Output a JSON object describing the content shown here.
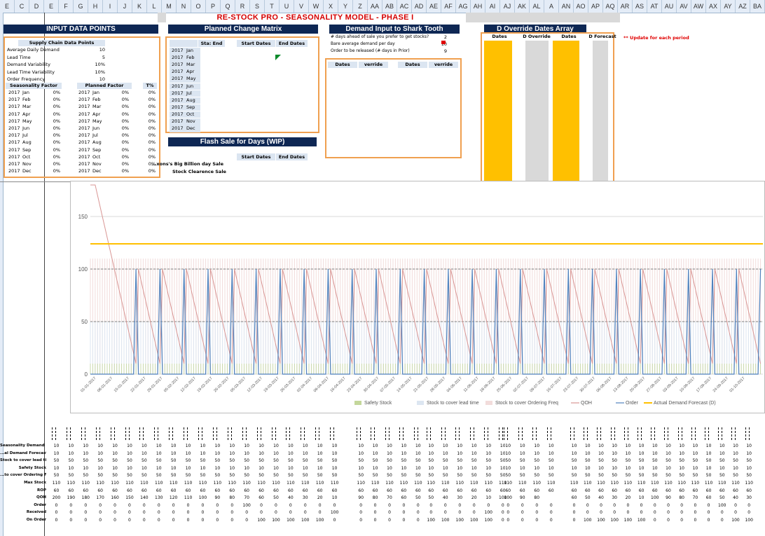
{
  "title": "RE-STOCK PRO - SEASONALITY MODEL - PHASE I",
  "columns": [
    "E",
    "C",
    "D",
    "E",
    "F",
    "G",
    "H",
    "I",
    "J",
    "K",
    "L",
    "M",
    "N",
    "O",
    "P",
    "Q",
    "R",
    "S",
    "T",
    "U",
    "V",
    "W",
    "X",
    "Y",
    "Z",
    "AA",
    "AB",
    "AC",
    "AD",
    "AE",
    "AF",
    "AG",
    "AH",
    "AI",
    "AJ",
    "AK",
    "AL",
    "A",
    "AN",
    "AO",
    "AP",
    "AQ",
    "AR",
    "AS",
    "AT",
    "AU",
    "AV",
    "AW",
    "AX",
    "AY",
    "AZ",
    "BA"
  ],
  "input": {
    "header": "INPUT DATA POINTS",
    "supply_header": "Supply Chain Data Points",
    "params": [
      {
        "label": "Average Daily Demand",
        "value": "10"
      },
      {
        "label": "Lead Time",
        "value": "5"
      },
      {
        "label": "Demand Variability",
        "value": "10%"
      },
      {
        "label": "Lead Time Variability",
        "value": "10%"
      },
      {
        "label": "Order Frequency",
        "value": "10"
      }
    ],
    "seasonality_header": "Seasonality Factor",
    "planned_header": "Planned Factor",
    "tpct_header": "T%",
    "months": [
      {
        "y": "2017",
        "m": "Jan",
        "s": "0%",
        "py": "2017",
        "pm": "Jan",
        "p": "0%",
        "t": "0%"
      },
      {
        "y": "2017",
        "m": "Feb",
        "s": "0%",
        "py": "2017",
        "pm": "Feb",
        "p": "0%",
        "t": "0%"
      },
      {
        "y": "2017",
        "m": "Mar",
        "s": "0%",
        "py": "2017",
        "pm": "Mar",
        "p": "0%",
        "t": "0%"
      },
      {
        "y": "2017",
        "m": "Apr",
        "s": "0%",
        "py": "2017",
        "pm": "Apr",
        "p": "0%",
        "t": "0%"
      },
      {
        "y": "2017",
        "m": "May",
        "s": "0%",
        "py": "2017",
        "pm": "May",
        "p": "0%",
        "t": "0%"
      },
      {
        "y": "2017",
        "m": "Jun",
        "s": "0%",
        "py": "2017",
        "pm": "Jun",
        "p": "0%",
        "t": "0%"
      },
      {
        "y": "2017",
        "m": "Jul",
        "s": "0%",
        "py": "2017",
        "pm": "Jul",
        "p": "0%",
        "t": "0%"
      },
      {
        "y": "2017",
        "m": "Aug",
        "s": "0%",
        "py": "2017",
        "pm": "Aug",
        "p": "0%",
        "t": "0%"
      },
      {
        "y": "2017",
        "m": "Sep",
        "s": "0%",
        "py": "2017",
        "pm": "Sep",
        "p": "0%",
        "t": "0%"
      },
      {
        "y": "2017",
        "m": "Oct",
        "s": "0%",
        "py": "2017",
        "pm": "Oct",
        "p": "0%",
        "t": "0%"
      },
      {
        "y": "2017",
        "m": "Nov",
        "s": "0%",
        "py": "2017",
        "pm": "Nov",
        "p": "0%",
        "t": "0%"
      },
      {
        "y": "2017",
        "m": "Dec",
        "s": "0%",
        "py": "2017",
        "pm": "Dec",
        "p": "0%",
        "t": "0%"
      }
    ]
  },
  "planned": {
    "header": "Planned Change Matrix",
    "col_change": "Sta: End",
    "col_start": "Start Dates",
    "col_end": "End Dates",
    "rows": [
      {
        "y": "2017",
        "m": "Jan"
      },
      {
        "y": "2017",
        "m": "Feb"
      },
      {
        "y": "2017",
        "m": "Mar"
      },
      {
        "y": "2017",
        "m": "Apr"
      },
      {
        "y": "2017",
        "m": "May"
      },
      {
        "y": "2017",
        "m": "Jun"
      },
      {
        "y": "2017",
        "m": "Jul"
      },
      {
        "y": "2017",
        "m": "Aug"
      },
      {
        "y": "2017",
        "m": "Sep"
      },
      {
        "y": "2017",
        "m": "Oct"
      },
      {
        "y": "2017",
        "m": "Nov"
      },
      {
        "y": "2017",
        "m": "Dec"
      }
    ]
  },
  "flash": {
    "header": "Flash Sale for Days (WIP)",
    "col_start": "Start Dates",
    "col_end": "End Dates",
    "sales": [
      "...xons's Big Billion day Sale",
      "Stock Clearence Sale"
    ]
  },
  "shark": {
    "header": "Demand Input to Shark Tooth",
    "items": [
      {
        "label": "# days ahead of sale you prefer to get stocks?",
        "value": "2"
      },
      {
        "label": "Bare average demand per day",
        "value": "10"
      },
      {
        "label": "Order to be released (# days in Prior)",
        "value": "9"
      }
    ],
    "cols": [
      "Dates",
      "verride",
      "Dates",
      "verride"
    ]
  },
  "override": {
    "header": "D Override Dates Array",
    "cols": [
      "Dates",
      "D Override",
      "Dates",
      "D Forecast"
    ],
    "note": "** Update for each period",
    "colors": {
      "yellow": "#ffc000",
      "grey": "#d9d9d9"
    }
  },
  "chart_data": {
    "type": "line",
    "y_ticks": [
      "0",
      "50",
      "100",
      "150"
    ],
    "ylim": [
      0,
      180
    ],
    "x_labels": [
      "01-01-2017",
      "08-01-2017",
      "15-01-2017",
      "22-01-2017",
      "29-01-2017",
      "05-02-2017",
      "12-02-2017",
      "19-02-2017",
      "26-02-2017",
      "05-03-2017",
      "12-03-2017",
      "19-03-2017",
      "26-03-2017",
      "02-04-2017",
      "09-04-2017",
      "16-04-2017",
      "23-04-2017",
      "30-04-2017",
      "07-05-2017",
      "14-05-2017",
      "21-05-2017",
      "28-05-2017",
      "04-06-2017",
      "11-06-2017",
      "18-06-2017",
      "25-06-2017",
      "02-07-2017",
      "09-07-2017",
      "16-07-2017",
      "23-07-2017",
      "30-07-2017",
      "06-08-2017",
      "13-08-2017",
      "20-08-2017",
      "27-08-2017",
      "03-09-2017",
      "10-09-2017",
      "17-09-2017",
      "24-09-2017",
      "01-10-2017"
    ],
    "series": [
      {
        "name": "Safety Stock",
        "value": 10,
        "color": "#c4d79b"
      },
      {
        "name": "Stock to cover lead time",
        "value": 50,
        "color": "#dce6f1"
      },
      {
        "name": "Stock to cover Ordering Freq",
        "value": 110,
        "color": "#f2dcdb"
      },
      {
        "name": "QOH",
        "color": "#d99694",
        "start": 200,
        "reorder_cycle": 10
      },
      {
        "name": "Order",
        "value": 100,
        "color": "#4f81bd"
      },
      {
        "name": "Actual Demand Forecast (D)",
        "value": 124,
        "color": "#ffc000"
      }
    ],
    "ref_lines": [
      50,
      100
    ]
  },
  "bottom": {
    "labels": [
      "Seasonality Demand (Ds)",
      "...al Demand Forecast (D)",
      "Stock to cover lead time",
      "Safety Stock",
      "...to cover Ordering Freq",
      "Max Stock",
      "ROP",
      "QOH",
      "Order",
      "Received",
      "On Order"
    ],
    "groups": [
      {
        "cells": 20,
        "rows": [
          [
            "10",
            "10",
            "10",
            "10",
            "10",
            "10",
            "10",
            "10",
            "10",
            "10",
            "10",
            "10",
            "10",
            "10",
            "10",
            "10",
            "10",
            "10",
            "10",
            "10"
          ],
          [
            "10",
            "10",
            "10",
            "10",
            "10",
            "10",
            "10",
            "10",
            "10",
            "10",
            "10",
            "10",
            "10",
            "10",
            "10",
            "10",
            "10",
            "10",
            "10",
            "10"
          ],
          [
            "50",
            "50",
            "50",
            "50",
            "50",
            "50",
            "50",
            "50",
            "50",
            "50",
            "50",
            "50",
            "50",
            "50",
            "50",
            "50",
            "50",
            "50",
            "50",
            "50"
          ],
          [
            "10",
            "10",
            "10",
            "10",
            "10",
            "10",
            "10",
            "10",
            "10",
            "10",
            "10",
            "10",
            "10",
            "10",
            "10",
            "10",
            "10",
            "10",
            "10",
            "10"
          ],
          [
            "50",
            "50",
            "50",
            "50",
            "50",
            "50",
            "50",
            "50",
            "50",
            "50",
            "50",
            "50",
            "50",
            "50",
            "50",
            "50",
            "50",
            "50",
            "50",
            "50"
          ],
          [
            "110",
            "110",
            "110",
            "110",
            "110",
            "110",
            "110",
            "110",
            "110",
            "110",
            "110",
            "110",
            "110",
            "110",
            "110",
            "110",
            "110",
            "110",
            "110",
            "110"
          ],
          [
            "60",
            "60",
            "60",
            "60",
            "60",
            "60",
            "60",
            "60",
            "60",
            "60",
            "60",
            "60",
            "60",
            "60",
            "60",
            "60",
            "60",
            "60",
            "60",
            "60"
          ],
          [
            "200",
            "190",
            "180",
            "170",
            "160",
            "150",
            "140",
            "130",
            "120",
            "110",
            "100",
            "90",
            "80",
            "70",
            "60",
            "50",
            "40",
            "30",
            "20",
            "10"
          ],
          [
            "0",
            "0",
            "0",
            "0",
            "0",
            "0",
            "0",
            "0",
            "0",
            "0",
            "0",
            "0",
            "0",
            "100",
            "0",
            "0",
            "0",
            "0",
            "0",
            "0"
          ],
          [
            "0",
            "0",
            "0",
            "0",
            "0",
            "0",
            "0",
            "0",
            "0",
            "0",
            "0",
            "0",
            "0",
            "0",
            "0",
            "0",
            "0",
            "0",
            "0",
            "100"
          ],
          [
            "0",
            "0",
            "0",
            "0",
            "0",
            "0",
            "0",
            "0",
            "0",
            "0",
            "0",
            "0",
            "0",
            "0",
            "100",
            "100",
            "100",
            "100",
            "100",
            "0"
          ]
        ]
      },
      {
        "cells": 5,
        "rows": [
          [
            "10",
            "10",
            "10",
            "10",
            "10"
          ],
          [
            "10",
            "10",
            "10",
            "10",
            "10"
          ],
          [
            "50",
            "50",
            "50",
            "50",
            "50"
          ],
          [
            "10",
            "10",
            "10",
            "10",
            "10"
          ],
          [
            "50",
            "50",
            "50",
            "50",
            "50"
          ],
          [
            "110",
            "110",
            "110",
            "110",
            "110"
          ],
          [
            "60",
            "60",
            "60",
            "60",
            "60"
          ],
          [
            "90",
            "80",
            "70",
            "60",
            "50"
          ],
          [
            "0",
            "0",
            "0",
            "0",
            "0"
          ],
          [
            "0",
            "0",
            "0",
            "0",
            "0"
          ],
          [
            "0",
            "0",
            "0",
            "0",
            "0"
          ]
        ]
      },
      {
        "cells": 6,
        "rows": [
          [
            "10",
            "10",
            "10",
            "10",
            "10",
            "10"
          ],
          [
            "10",
            "10",
            "10",
            "10",
            "10",
            "10"
          ],
          [
            "50",
            "50",
            "50",
            "50",
            "50",
            "50"
          ],
          [
            "10",
            "10",
            "10",
            "10",
            "10",
            "10"
          ],
          [
            "50",
            "50",
            "50",
            "50",
            "50",
            "50"
          ],
          [
            "110",
            "110",
            "110",
            "110",
            "110",
            "110"
          ],
          [
            "60",
            "60",
            "60",
            "60",
            "60",
            "60"
          ],
          [
            "50",
            "40",
            "30",
            "20",
            "10",
            "100"
          ],
          [
            "0",
            "0",
            "0",
            "0",
            "0",
            "0"
          ],
          [
            "0",
            "0",
            "0",
            "0",
            "100",
            "0"
          ],
          [
            "100",
            "100",
            "100",
            "100",
            "100",
            "0"
          ]
        ]
      },
      {
        "cells": 4,
        "rows": [
          [
            "10",
            "10",
            "10",
            "10"
          ],
          [
            "10",
            "10",
            "10",
            "10"
          ],
          [
            "50",
            "50",
            "50",
            "50"
          ],
          [
            "10",
            "10",
            "10",
            "10"
          ],
          [
            "50",
            "50",
            "50",
            "50"
          ],
          [
            "110",
            "110",
            "110",
            "110"
          ],
          [
            "60",
            "60",
            "60",
            "60"
          ],
          [
            "100",
            "90",
            "80",
            ""
          ],
          [
            "0",
            "0",
            "0",
            "0"
          ],
          [
            "0",
            "0",
            "0",
            "0"
          ],
          [
            "0",
            "0",
            "0",
            "0"
          ]
        ]
      },
      {
        "cells": 14,
        "rows": [
          [
            "10",
            "10",
            "10",
            "10",
            "10",
            "10",
            "10",
            "10",
            "10",
            "10",
            "10",
            "10",
            "10",
            "10"
          ],
          [
            "10",
            "10",
            "10",
            "10",
            "10",
            "10",
            "10",
            "10",
            "10",
            "10",
            "10",
            "10",
            "10",
            "10"
          ],
          [
            "50",
            "50",
            "50",
            "50",
            "50",
            "50",
            "50",
            "50",
            "50",
            "50",
            "50",
            "50",
            "50",
            "50"
          ],
          [
            "10",
            "10",
            "10",
            "10",
            "10",
            "10",
            "10",
            "10",
            "10",
            "10",
            "10",
            "10",
            "10",
            "10"
          ],
          [
            "50",
            "50",
            "50",
            "50",
            "50",
            "50",
            "50",
            "50",
            "50",
            "50",
            "50",
            "50",
            "50",
            "50"
          ],
          [
            "110",
            "110",
            "110",
            "110",
            "110",
            "110",
            "110",
            "110",
            "110",
            "110",
            "110",
            "110",
            "110",
            "110"
          ],
          [
            "60",
            "60",
            "60",
            "60",
            "60",
            "60",
            "60",
            "60",
            "60",
            "60",
            "60",
            "60",
            "60",
            "60"
          ],
          [
            "60",
            "50",
            "40",
            "30",
            "20",
            "10",
            "100",
            "90",
            "80",
            "70",
            "60",
            "50",
            "40",
            "30"
          ],
          [
            "0",
            "0",
            "0",
            "0",
            "0",
            "0",
            "0",
            "0",
            "0",
            "0",
            "0",
            "100",
            "0",
            "0"
          ],
          [
            "0",
            "0",
            "0",
            "0",
            "0",
            "0",
            "0",
            "0",
            "0",
            "0",
            "0",
            "0",
            "0",
            "0"
          ],
          [
            "0",
            "100",
            "100",
            "100",
            "100",
            "100",
            "0",
            "0",
            "0",
            "0",
            "0",
            "0",
            "100",
            "100"
          ]
        ]
      }
    ]
  }
}
